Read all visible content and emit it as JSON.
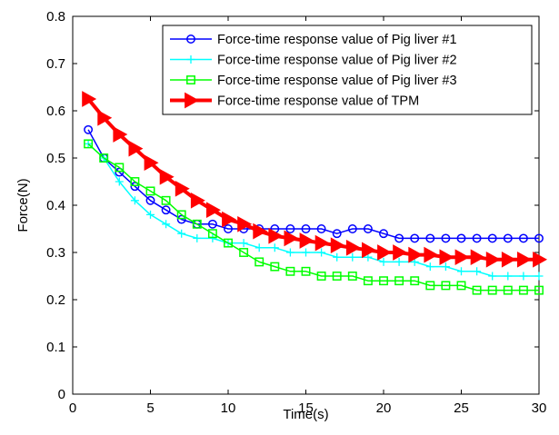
{
  "chart_data": {
    "type": "line",
    "xlabel": "Time(s)",
    "ylabel": "Force(N)",
    "xlim": [
      0,
      30
    ],
    "ylim": [
      0,
      0.8
    ],
    "xticks": [
      0,
      5,
      10,
      15,
      20,
      25,
      30
    ],
    "yticks": [
      0,
      0.1,
      0.2,
      0.3,
      0.4,
      0.5,
      0.6,
      0.7,
      0.8
    ],
    "grid": false,
    "legend_position": "top-right",
    "x": [
      1,
      2,
      3,
      4,
      5,
      6,
      7,
      8,
      9,
      10,
      11,
      12,
      13,
      14,
      15,
      16,
      17,
      18,
      19,
      20,
      21,
      22,
      23,
      24,
      25,
      26,
      27,
      28,
      29,
      30
    ],
    "series": [
      {
        "name": "Force-time response value of Pig liver #1",
        "color": "#0000ff",
        "marker": "circle",
        "values": [
          0.56,
          0.5,
          0.47,
          0.44,
          0.41,
          0.39,
          0.37,
          0.36,
          0.36,
          0.35,
          0.35,
          0.35,
          0.35,
          0.35,
          0.35,
          0.35,
          0.34,
          0.35,
          0.35,
          0.34,
          0.33,
          0.33,
          0.33,
          0.33,
          0.33,
          0.33,
          0.33,
          0.33,
          0.33,
          0.33
        ]
      },
      {
        "name": "Force-time response value of Pig liver #2",
        "color": "#00ffff",
        "marker": "plus",
        "values": [
          0.53,
          0.5,
          0.45,
          0.41,
          0.38,
          0.36,
          0.34,
          0.33,
          0.33,
          0.32,
          0.32,
          0.31,
          0.31,
          0.3,
          0.3,
          0.3,
          0.29,
          0.29,
          0.29,
          0.28,
          0.28,
          0.28,
          0.27,
          0.27,
          0.26,
          0.26,
          0.25,
          0.25,
          0.25,
          0.25
        ]
      },
      {
        "name": "Force-time response value of Pig liver #3",
        "color": "#00ff00",
        "marker": "square",
        "values": [
          0.53,
          0.5,
          0.48,
          0.45,
          0.43,
          0.41,
          0.38,
          0.36,
          0.34,
          0.32,
          0.3,
          0.28,
          0.27,
          0.26,
          0.26,
          0.25,
          0.25,
          0.25,
          0.24,
          0.24,
          0.24,
          0.24,
          0.23,
          0.23,
          0.23,
          0.22,
          0.22,
          0.22,
          0.22,
          0.22
        ]
      },
      {
        "name": "Force-time response value of TPM",
        "color": "#ff0000",
        "marker": "triangle-right",
        "values": [
          0.625,
          0.585,
          0.55,
          0.52,
          0.49,
          0.46,
          0.435,
          0.41,
          0.39,
          0.37,
          0.36,
          0.345,
          0.335,
          0.33,
          0.325,
          0.32,
          0.315,
          0.31,
          0.305,
          0.3,
          0.3,
          0.295,
          0.295,
          0.29,
          0.29,
          0.29,
          0.285,
          0.285,
          0.285,
          0.285
        ]
      }
    ]
  }
}
